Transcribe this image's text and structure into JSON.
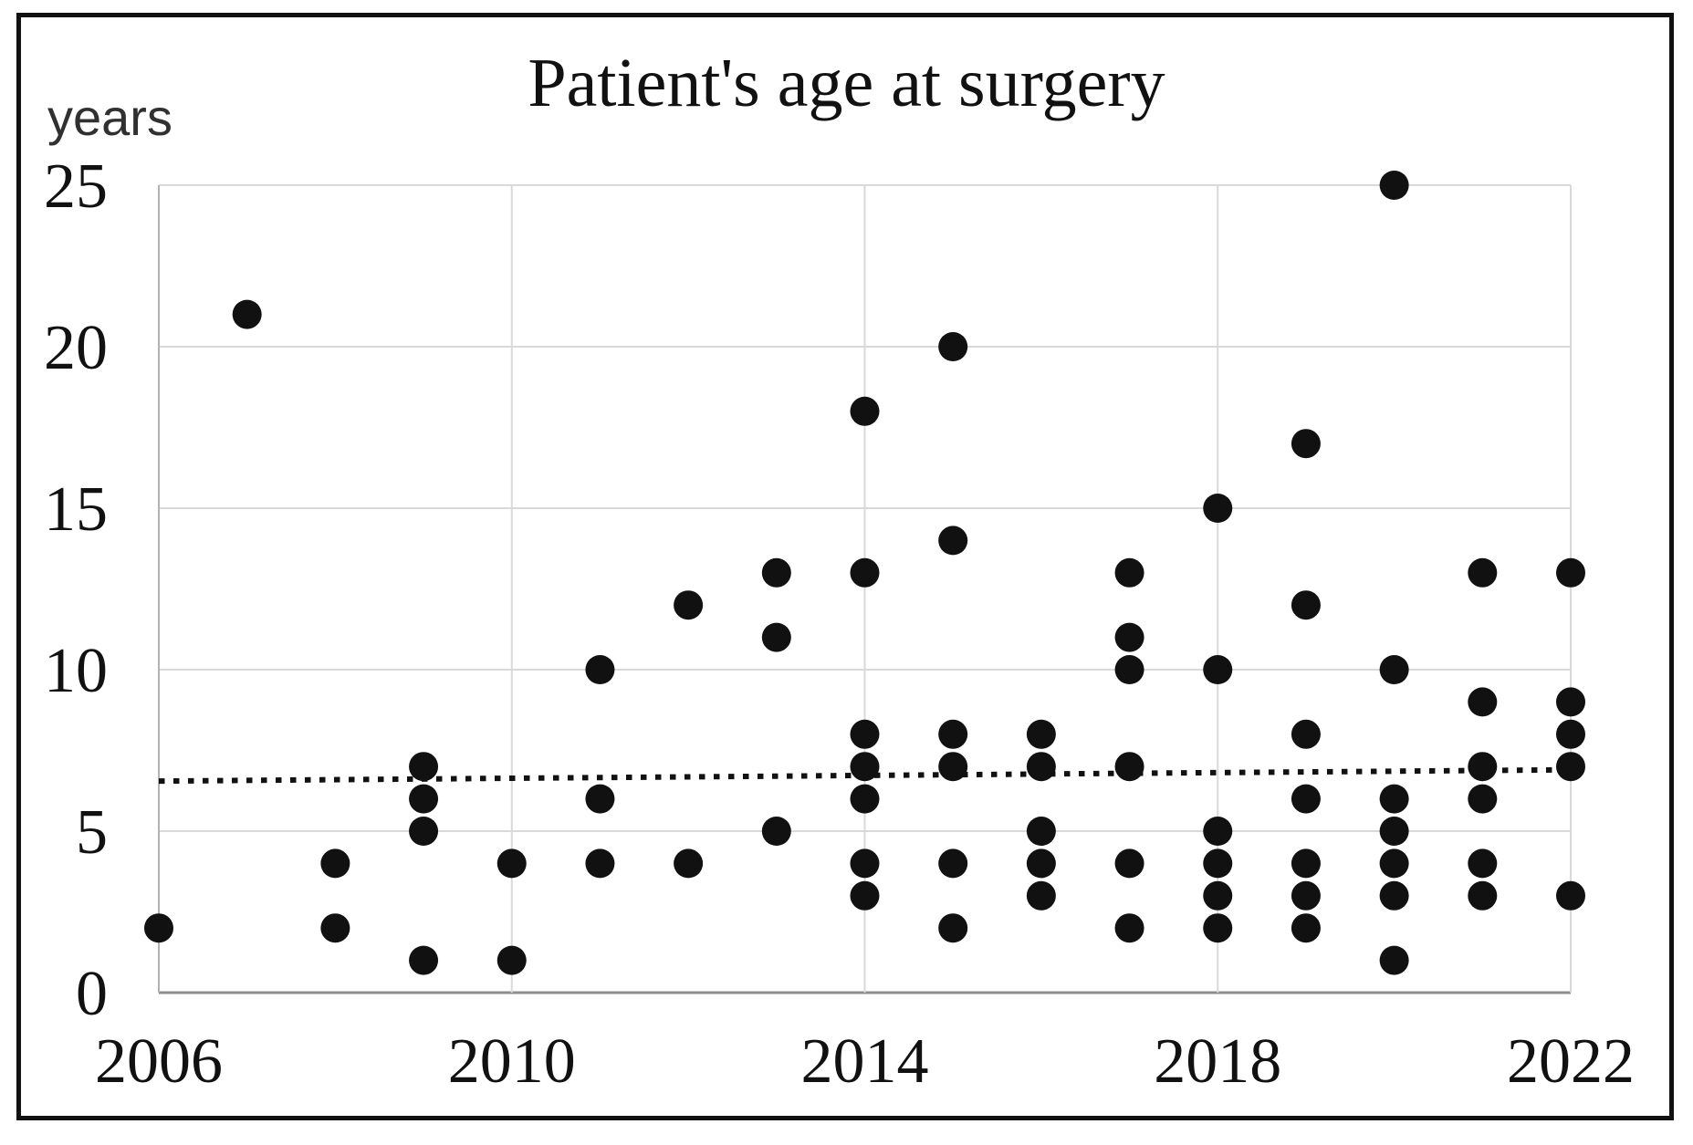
{
  "figure": {
    "title": "Patient's age at surgery",
    "y_unit_label": "years"
  },
  "chart_data": {
    "type": "scatter",
    "title": "Patient's age at surgery",
    "xlabel": "",
    "ylabel": "years",
    "xlim": [
      2006,
      2022
    ],
    "ylim": [
      0,
      25
    ],
    "grid": true,
    "x_ticks": [
      2006,
      2010,
      2014,
      2018,
      2022
    ],
    "y_ticks": [
      0,
      5,
      10,
      15,
      20,
      25
    ],
    "legend": "none",
    "points_by_year": {
      "2006": [
        2
      ],
      "2007": [
        21
      ],
      "2008": [
        4,
        2
      ],
      "2009": [
        7,
        6,
        5,
        1
      ],
      "2010": [
        4,
        1
      ],
      "2011": [
        10,
        6,
        4
      ],
      "2012": [
        12,
        4
      ],
      "2013": [
        13,
        11,
        5
      ],
      "2014": [
        18,
        13,
        8,
        7,
        6,
        4,
        3
      ],
      "2015": [
        20,
        14,
        8,
        7,
        4,
        2
      ],
      "2016": [
        8,
        7,
        5,
        4,
        3
      ],
      "2017": [
        13,
        11,
        10,
        7,
        4,
        2
      ],
      "2018": [
        15,
        10,
        5,
        4,
        3,
        2
      ],
      "2019": [
        17,
        12,
        8,
        6,
        4,
        3,
        2
      ],
      "2020": [
        25,
        10,
        6,
        5,
        4,
        3,
        1
      ],
      "2021": [
        13,
        9,
        7,
        6,
        4,
        3
      ],
      "2022": [
        13,
        9,
        8,
        7,
        3
      ]
    },
    "trendline": {
      "style": "dotted",
      "x1": 2006,
      "y1": 6.55,
      "x2": 2022,
      "y2": 6.9
    },
    "colors": {
      "point": "#111111",
      "grid": "#d9d9d9",
      "axis_left": "#b3b3b3",
      "axis_bottom": "#8c8c8c",
      "trend": "#111111",
      "frame": "#111111"
    }
  }
}
